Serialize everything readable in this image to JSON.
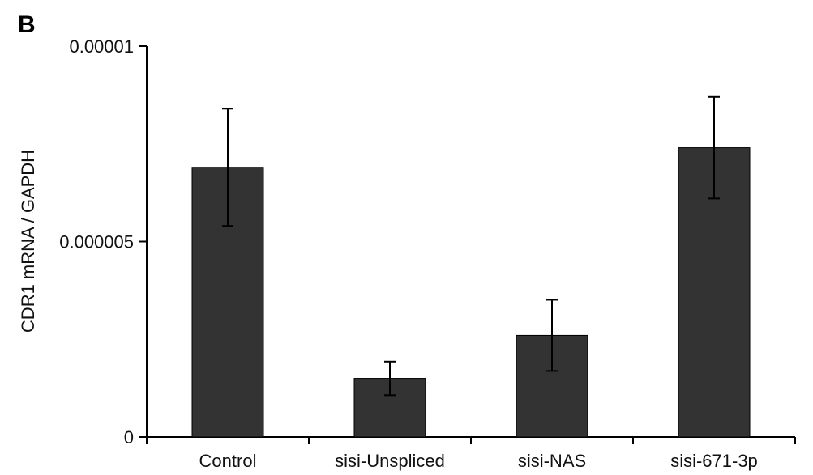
{
  "panel_label": "B",
  "chart_data": {
    "type": "bar",
    "categories": [
      "Control",
      "sisi-Unspliced",
      "sisi-NAS",
      "sisi-671-3p"
    ],
    "values": [
      6.9e-06,
      1.5e-06,
      2.6e-06,
      7.4e-06
    ],
    "errors": [
      1.5e-06,
      4.3e-07,
      9.1e-07,
      1.3e-06
    ],
    "ylabel": "CDR1 mRNA / GAPDH",
    "ylim": [
      0,
      1e-05
    ],
    "yticks": [
      0,
      5e-06,
      1e-05
    ],
    "ytick_labels": [
      "0",
      "0.000005",
      "0.00001"
    ],
    "bar_color": "#333333",
    "grid": false
  }
}
